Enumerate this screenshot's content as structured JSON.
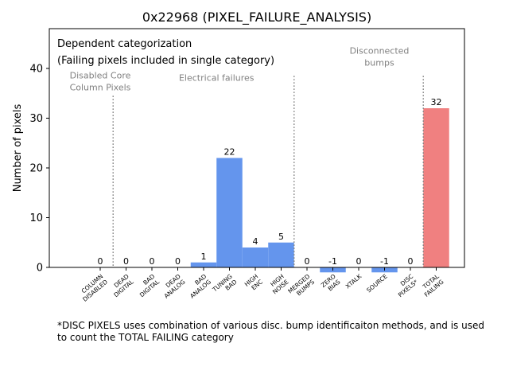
{
  "chart_data": {
    "type": "bar",
    "title": "0x22968 (PIXEL_FAILURE_ANALYSIS)",
    "xlabel": "",
    "ylabel": "Number of pixels",
    "ylim": [
      0,
      48
    ],
    "yticks": [
      0,
      10,
      20,
      30,
      40
    ],
    "grid": false,
    "categories": [
      [
        "COLUMN",
        "DISABLED"
      ],
      [
        "DEAD",
        "DIGITAL"
      ],
      [
        "BAD",
        "DIGITAL"
      ],
      [
        "DEAD",
        "ANALOG"
      ],
      [
        "BAD",
        "ANALOG"
      ],
      [
        "TUNING",
        "BAD"
      ],
      [
        "HIGH",
        "ENC"
      ],
      [
        "HIGH",
        "NOISE"
      ],
      [
        "MERGED",
        "BUMPS"
      ],
      [
        "ZERO",
        "BIAS"
      ],
      [
        "XTALK"
      ],
      [
        "SOURCE"
      ],
      [
        "DISC",
        "PIXELS*"
      ],
      [
        "TOTAL",
        "FAILING"
      ]
    ],
    "values": [
      0,
      0,
      0,
      0,
      1,
      22,
      4,
      5,
      0,
      -1,
      0,
      -1,
      0,
      32
    ],
    "value_labels": [
      "0",
      "0",
      "0",
      "0",
      "1",
      "22",
      "4",
      "5",
      "0",
      "-1",
      "0",
      "-1",
      "0",
      "32"
    ],
    "colors": {
      "electrical": "#6495ed",
      "total": "#f08080",
      "annotation_text": "#808080",
      "divider": "#808080"
    },
    "bar_colors": [
      "#6495ed",
      "#6495ed",
      "#6495ed",
      "#6495ed",
      "#6495ed",
      "#6495ed",
      "#6495ed",
      "#6495ed",
      "#6495ed",
      "#6495ed",
      "#6495ed",
      "#6495ed",
      "#6495ed",
      "#f08080"
    ],
    "legend_note_lines": [
      "Dependent categorization",
      "(Failing pixels included in single category)"
    ],
    "group_labels": [
      {
        "lines": [
          "Disabled Core",
          "Column Pixels"
        ],
        "x": 0,
        "y": 38
      },
      {
        "lines": [
          "Electrical failures"
        ],
        "x": 4.5,
        "y": 37.5
      },
      {
        "lines": [
          "Disconnected",
          "bumps"
        ],
        "x": 10.8,
        "y": 43
      }
    ],
    "dividers": [
      {
        "x": 0.5,
        "y_top": 34.5
      },
      {
        "x": 7.5,
        "y_top": 38.5
      },
      {
        "x": 12.5,
        "y_top": 38.5
      }
    ]
  },
  "footnote": "*DISC PIXELS uses combination of various disc. bump identificaiton methods, and is used\nto count the TOTAL FAILING category"
}
